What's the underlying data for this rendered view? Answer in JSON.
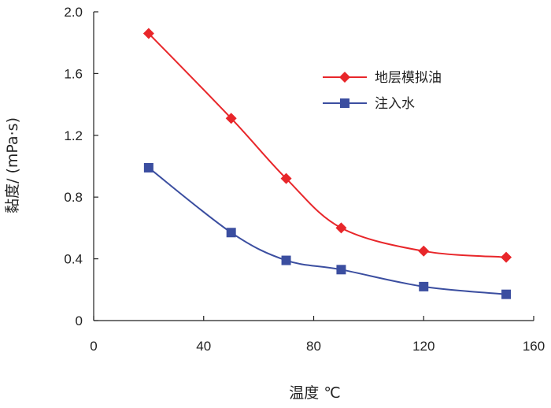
{
  "chart_data": {
    "type": "line",
    "xlabel": "温度 ℃",
    "ylabel": "黏度/ (mPa·s)",
    "xlim": [
      0,
      160
    ],
    "ylim": [
      0,
      2.0
    ],
    "x_ticks": [
      "0",
      "40",
      "80",
      "120",
      "160"
    ],
    "y_ticks": [
      "0",
      "0.4",
      "0.8",
      "1.2",
      "1.6",
      "2.0"
    ],
    "grid": false,
    "legend_position": "top-right",
    "series": [
      {
        "name": "地层模拟油",
        "color": "#e8262a",
        "marker": "diamond",
        "x": [
          20,
          50,
          70,
          90,
          120,
          150
        ],
        "y": [
          1.86,
          1.31,
          0.92,
          0.6,
          0.45,
          0.41
        ]
      },
      {
        "name": "注入水",
        "color": "#3b4ea0",
        "marker": "square",
        "x": [
          20,
          50,
          70,
          90,
          120,
          150
        ],
        "y": [
          0.99,
          0.57,
          0.39,
          0.33,
          0.22,
          0.17
        ]
      }
    ]
  }
}
